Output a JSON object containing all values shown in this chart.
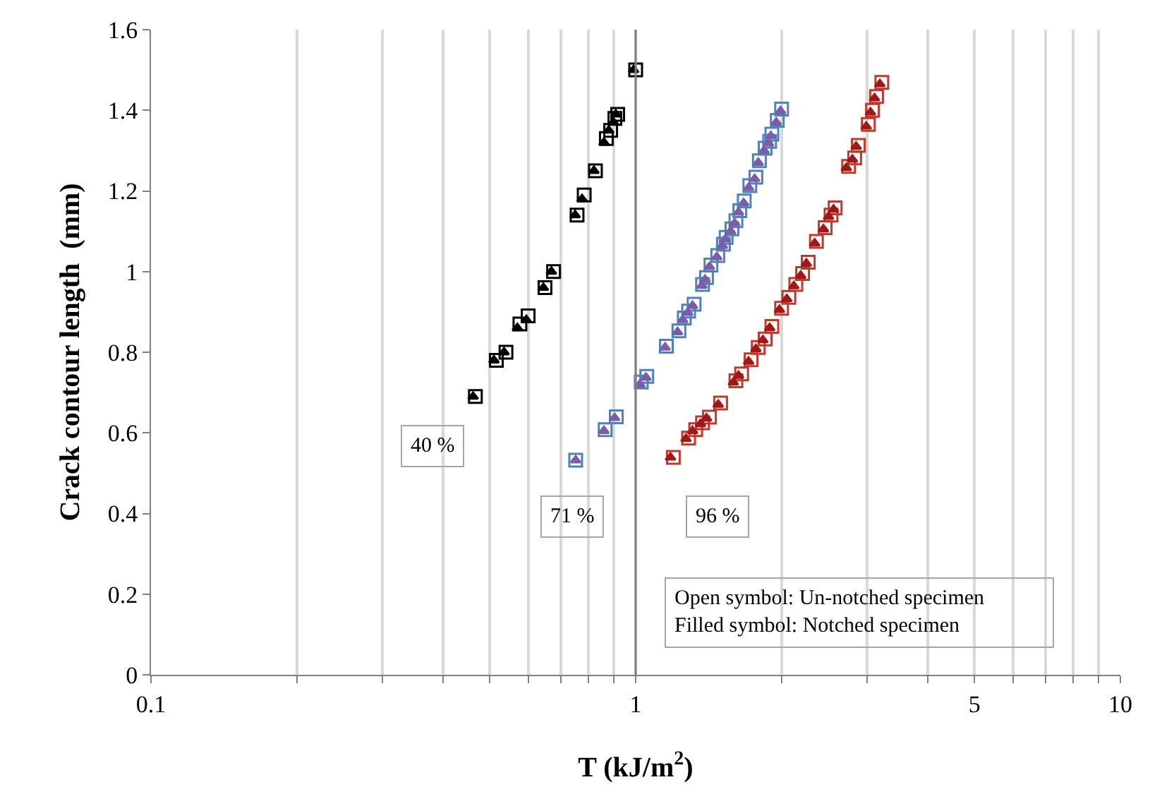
{
  "chart_data": {
    "type": "scatter",
    "xlabel": "T (kJ/m$^{2}$)",
    "ylabel": "Crack contour length  (mm)",
    "log": "x",
    "grid": "x",
    "xlim": [
      0.1,
      10
    ],
    "xticks": [
      0.1,
      {
        "value": 0.2,
        "label": null
      },
      {
        "value": 0.3,
        "label": null
      },
      {
        "value": 0.4,
        "label": null
      },
      {
        "value": 0.5,
        "label": null
      },
      {
        "value": 0.6,
        "label": null
      },
      {
        "value": 0.7,
        "label": null
      },
      {
        "value": 0.8,
        "label": null
      },
      {
        "value": 0.9,
        "label": null
      },
      1,
      {
        "value": 2,
        "label": null
      },
      {
        "value": 3,
        "label": null
      },
      {
        "value": 4,
        "label": null
      },
      5,
      {
        "value": 6,
        "label": null
      },
      {
        "value": 7,
        "label": null
      },
      {
        "value": 8,
        "label": null
      },
      {
        "value": 9,
        "label": null
      },
      10
    ],
    "ylim": [
      0,
      1.6
    ],
    "yticks": [
      0,
      0.2,
      0.4,
      0.6,
      0.8,
      1,
      1.2,
      1.4,
      1.6
    ],
    "ref_lines": [
      {
        "axis": "x",
        "value": 1,
        "color": "#808080"
      }
    ],
    "annotations": [
      "40 %",
      "71 %",
      "96 %",
      "Open symbol: Un-notched specimen\nFilled symbol: Notched specimen"
    ],
    "series": [
      {
        "color": "#000000",
        "marker": "square",
        "x": [
          0.467,
          0.516,
          0.54,
          0.577,
          0.6,
          0.65,
          0.677,
          0.757,
          0.783,
          0.826,
          0.87,
          0.888,
          0.906,
          0.918,
          1.0
        ],
        "values": [
          0.69,
          0.78,
          0.8,
          0.87,
          0.89,
          0.96,
          1.0,
          1.14,
          1.19,
          1.25,
          1.33,
          1.35,
          1.38,
          1.39,
          1.5
        ]
      },
      {
        "color": "#000000",
        "marker": "triangle",
        "x": [
          0.462,
          0.51,
          0.535,
          0.57,
          0.595,
          0.645,
          0.67,
          0.75,
          0.775,
          0.82,
          0.86,
          0.88,
          0.9,
          0.91,
          0.99
        ],
        "values": [
          0.69,
          0.78,
          0.8,
          0.86,
          0.88,
          0.96,
          1.0,
          1.14,
          1.18,
          1.25,
          1.32,
          1.35,
          1.37,
          1.39,
          1.5
        ]
      },
      {
        "color": "#4f81bd",
        "marker": "square",
        "x": [
          0.752,
          0.865,
          0.912,
          1.027,
          1.054,
          1.157,
          1.228,
          1.26,
          1.286,
          1.32,
          1.374,
          1.4,
          1.43,
          1.477,
          1.517,
          1.537,
          1.58,
          1.61,
          1.64,
          1.675,
          1.72,
          1.77,
          1.8,
          1.85,
          1.89,
          1.91,
          1.96,
          2.0
        ],
        "values": [
          0.532,
          0.608,
          0.64,
          0.726,
          0.74,
          0.815,
          0.853,
          0.885,
          0.902,
          0.919,
          0.968,
          0.985,
          1.016,
          1.04,
          1.068,
          1.085,
          1.106,
          1.126,
          1.151,
          1.175,
          1.213,
          1.234,
          1.275,
          1.306,
          1.323,
          1.341,
          1.375,
          1.403
        ]
      },
      {
        "color": "#7a5ea8",
        "marker": "triangle",
        "x": [
          0.752,
          0.86,
          0.905,
          1.02,
          1.05,
          1.15,
          1.22,
          1.25,
          1.28,
          1.31,
          1.37,
          1.39,
          1.42,
          1.47,
          1.51,
          1.53,
          1.57,
          1.6,
          1.63,
          1.67,
          1.71,
          1.76,
          1.79,
          1.84,
          1.88,
          1.9,
          1.95,
          1.99
        ],
        "values": [
          0.532,
          0.605,
          0.637,
          0.72,
          0.737,
          0.812,
          0.85,
          0.88,
          0.898,
          0.915,
          0.965,
          0.98,
          1.012,
          1.036,
          1.064,
          1.08,
          1.1,
          1.12,
          1.147,
          1.17,
          1.208,
          1.23,
          1.27,
          1.3,
          1.318,
          1.336,
          1.37,
          1.398
        ]
      },
      {
        "color": "#c0392b",
        "marker": "square",
        "x": [
          1.196,
          1.286,
          1.33,
          1.374,
          1.42,
          1.497,
          1.61,
          1.654,
          1.73,
          1.79,
          1.85,
          1.91,
          2.0,
          2.07,
          2.14,
          2.21,
          2.27,
          2.36,
          2.46,
          2.53,
          2.58,
          2.75,
          2.83,
          2.88,
          3.02,
          3.08,
          3.14,
          3.22
        ],
        "values": [
          0.539,
          0.587,
          0.608,
          0.625,
          0.639,
          0.674,
          0.729,
          0.746,
          0.781,
          0.812,
          0.833,
          0.864,
          0.909,
          0.936,
          0.968,
          0.995,
          1.023,
          1.075,
          1.109,
          1.14,
          1.158,
          1.261,
          1.282,
          1.313,
          1.365,
          1.4,
          1.434,
          1.469
        ]
      },
      {
        "color": "#a01818",
        "marker": "triangle",
        "x": [
          1.18,
          1.27,
          1.31,
          1.36,
          1.4,
          1.48,
          1.59,
          1.63,
          1.71,
          1.77,
          1.83,
          1.89,
          1.98,
          2.05,
          2.12,
          2.19,
          2.25,
          2.34,
          2.44,
          2.5,
          2.56,
          2.72,
          2.8,
          2.85,
          2.99,
          3.05,
          3.11,
          3.19
        ],
        "values": [
          0.539,
          0.585,
          0.605,
          0.622,
          0.636,
          0.67,
          0.725,
          0.742,
          0.777,
          0.808,
          0.83,
          0.86,
          0.905,
          0.932,
          0.964,
          0.99,
          1.02,
          1.07,
          1.105,
          1.136,
          1.154,
          1.257,
          1.278,
          1.31,
          1.36,
          1.395,
          1.43,
          1.465
        ]
      }
    ]
  }
}
